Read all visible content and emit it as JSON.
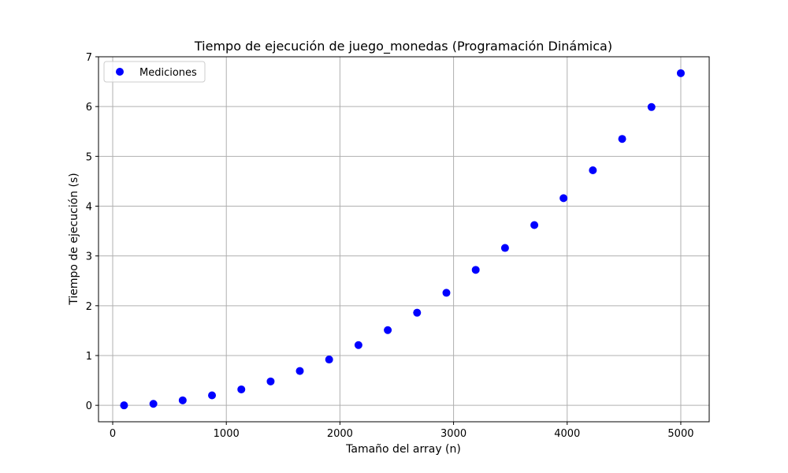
{
  "chart_data": {
    "type": "scatter",
    "title": "Tiempo de ejecución de juego_monedas (Programación Dinámica)",
    "xlabel": "Tamaño del array (n)",
    "ylabel": "Tiempo de ejecución (s)",
    "xlim": [
      -125,
      5250
    ],
    "ylim": [
      -0.33,
      7
    ],
    "xticks": [
      0,
      1000,
      2000,
      3000,
      4000,
      5000
    ],
    "yticks": [
      0,
      1,
      2,
      3,
      4,
      5,
      6,
      7
    ],
    "grid": true,
    "legend_position": "top-left",
    "series": [
      {
        "name": "Mediciones",
        "color": "#0000ff",
        "marker": "circle",
        "x": [
          100,
          358,
          616,
          874,
          1132,
          1390,
          1647,
          1905,
          2163,
          2421,
          2679,
          2937,
          3195,
          3453,
          3711,
          3968,
          4226,
          4484,
          4742,
          5000
        ],
        "y": [
          0.0,
          0.03,
          0.1,
          0.2,
          0.32,
          0.48,
          0.69,
          0.92,
          1.21,
          1.51,
          1.86,
          2.26,
          2.72,
          3.16,
          3.62,
          4.16,
          4.72,
          5.35,
          5.99,
          6.67
        ]
      }
    ]
  }
}
